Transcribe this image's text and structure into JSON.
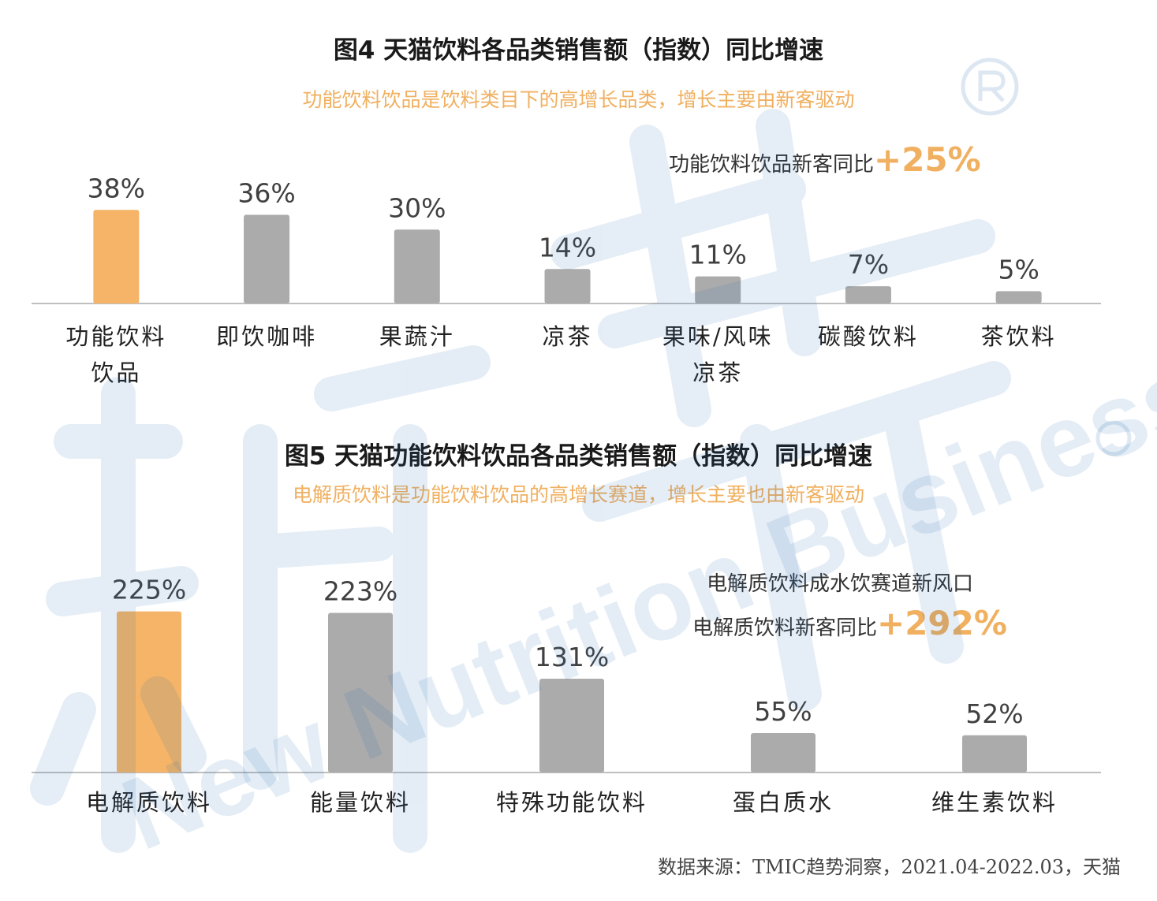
{
  "colors": {
    "highlight": "#F5B467",
    "bar": "#ABABAB",
    "axis": "#BFBFBF",
    "accent_text": "#F0B060"
  },
  "watermark": {
    "brand": "新营养",
    "text": "New Nutrition Business",
    "icon": "registered-mark-icon"
  },
  "chart_data": [
    {
      "type": "bar",
      "title": "图4 天猫饮料各品类销售额（指数）同比增速",
      "subtitle": "功能饮料饮品是饮料类目下的高增长品类，增长主要由新客驱动",
      "annotations": [
        {
          "text": "功能饮料饮品新客同比",
          "value": "+25%"
        }
      ],
      "categories": [
        [
          "功能饮料",
          "饮品"
        ],
        [
          "即饮咖啡"
        ],
        [
          "果蔬汁"
        ],
        [
          "凉茶"
        ],
        [
          "果味/风味",
          "凉茶"
        ],
        [
          "碳酸饮料"
        ],
        [
          "茶饮料"
        ]
      ],
      "values": [
        38,
        36,
        30,
        14,
        11,
        7,
        5
      ],
      "labels": [
        "38%",
        "36%",
        "30%",
        "14%",
        "11%",
        "7%",
        "5%"
      ],
      "highlight_index": 0,
      "ylim": [
        0,
        40
      ],
      "grid": false
    },
    {
      "type": "bar",
      "title": "图5 天猫功能饮料饮品各品类销售额（指数）同比增速",
      "subtitle": "电解质饮料是功能饮料饮品的高增长赛道，增长主要也由新客驱动",
      "annotations": [
        {
          "text": "电解质饮料成水饮赛道新风口",
          "value": ""
        },
        {
          "text": "电解质饮料新客同比",
          "value": "+292%"
        }
      ],
      "categories": [
        [
          "电解质饮料"
        ],
        [
          "能量饮料"
        ],
        [
          "特殊功能饮料"
        ],
        [
          "蛋白质水"
        ],
        [
          "维生素饮料"
        ]
      ],
      "values": [
        225,
        223,
        131,
        55,
        52
      ],
      "labels": [
        "225%",
        "223%",
        "131%",
        "55%",
        "52%"
      ],
      "highlight_index": 0,
      "ylim": [
        0,
        240
      ],
      "grid": false
    }
  ],
  "source": "数据来源：TMIC趋势洞察，2021.04-2022.03，天猫"
}
